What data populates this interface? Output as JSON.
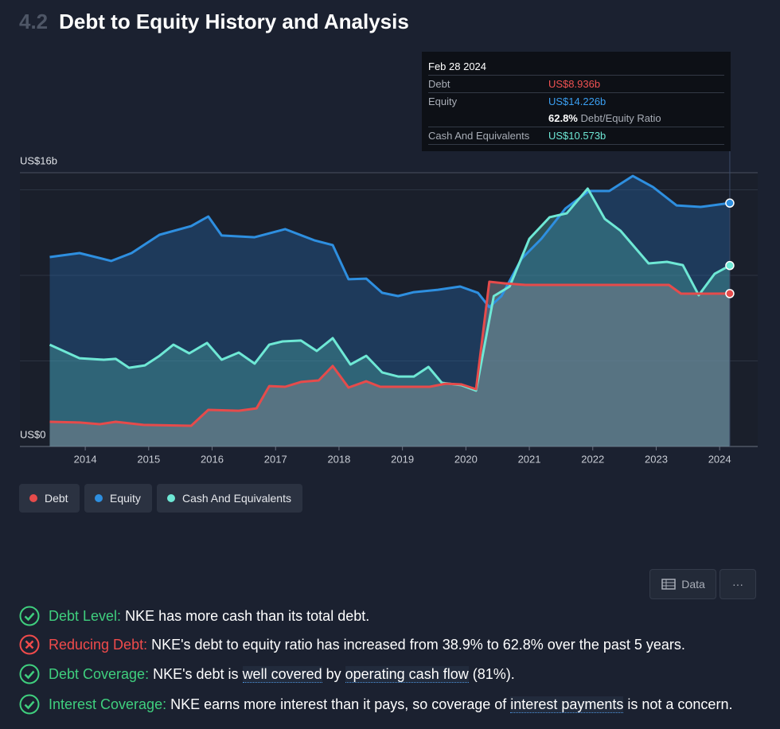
{
  "header": {
    "number": "4.2",
    "title": "Debt to Equity History and Analysis"
  },
  "chart_data": {
    "type": "area",
    "xlim": [
      2012.97,
      2024.6
    ],
    "xticks": [
      2014,
      2015,
      2016,
      2017,
      2018,
      2019,
      2020,
      2021,
      2022,
      2023,
      2024
    ],
    "ylim": [
      0,
      16
    ],
    "yticks": [
      {
        "value": 0,
        "label": "US$0"
      },
      {
        "value": 16,
        "label": "US$16b"
      }
    ],
    "grid_values": [
      5,
      10,
      15
    ],
    "series": [
      {
        "name": "Equity",
        "color": "#2e8fe0",
        "x": [
          2013.44,
          2013.91,
          2014.41,
          2014.73,
          2015.17,
          2015.67,
          2015.94,
          2016.15,
          2016.67,
          2017.15,
          2017.61,
          2017.9,
          2018.15,
          2018.43,
          2018.68,
          2018.93,
          2019.18,
          2019.56,
          2019.91,
          2020.19,
          2020.37,
          2020.56,
          2020.88,
          2021.19,
          2021.57,
          2021.94,
          2022.26,
          2022.63,
          2022.95,
          2023.32,
          2023.7,
          2024.16
        ],
        "values": [
          11.07,
          11.3,
          10.84,
          11.3,
          12.37,
          12.88,
          13.44,
          12.33,
          12.23,
          12.7,
          12.05,
          11.77,
          9.77,
          9.81,
          8.98,
          8.79,
          9.02,
          9.16,
          9.35,
          8.98,
          8.14,
          8.79,
          10.98,
          12.14,
          13.91,
          14.93,
          14.93,
          15.81,
          15.16,
          14.09,
          14.0,
          14.226
        ]
      },
      {
        "name": "Cash And Equivalents",
        "color": "#6ee8d5",
        "x": [
          2013.44,
          2013.91,
          2014.29,
          2014.48,
          2014.69,
          2014.94,
          2015.17,
          2015.39,
          2015.64,
          2015.92,
          2016.15,
          2016.42,
          2016.67,
          2016.9,
          2017.11,
          2017.4,
          2017.65,
          2017.9,
          2018.18,
          2018.43,
          2018.68,
          2018.93,
          2019.18,
          2019.41,
          2019.62,
          2019.93,
          2020.16,
          2020.44,
          2020.69,
          2021.0,
          2021.32,
          2021.59,
          2021.92,
          2022.19,
          2022.44,
          2022.88,
          2023.17,
          2023.42,
          2023.67,
          2023.92,
          2024.16
        ],
        "values": [
          5.95,
          5.16,
          5.07,
          5.12,
          4.6,
          4.74,
          5.3,
          5.95,
          5.44,
          6.05,
          5.07,
          5.49,
          4.84,
          5.95,
          6.14,
          6.19,
          5.58,
          6.33,
          4.79,
          5.3,
          4.33,
          4.09,
          4.09,
          4.65,
          3.72,
          3.58,
          3.26,
          8.79,
          9.35,
          12.14,
          13.4,
          13.63,
          15.07,
          13.3,
          12.6,
          10.7,
          10.79,
          10.6,
          8.84,
          10.09,
          10.573
        ]
      },
      {
        "name": "Debt",
        "color": "#e64b4b",
        "x": [
          2013.44,
          2013.91,
          2014.23,
          2014.48,
          2014.92,
          2015.67,
          2015.94,
          2016.42,
          2016.7,
          2016.9,
          2017.15,
          2017.4,
          2017.68,
          2017.9,
          2018.15,
          2018.43,
          2018.65,
          2019.43,
          2019.68,
          2019.93,
          2020.16,
          2020.37,
          2020.62,
          2020.94,
          2023.2,
          2023.39,
          2024.16
        ],
        "values": [
          1.44,
          1.4,
          1.3,
          1.44,
          1.26,
          1.21,
          2.14,
          2.09,
          2.23,
          3.53,
          3.49,
          3.77,
          3.86,
          4.7,
          3.44,
          3.81,
          3.49,
          3.49,
          3.67,
          3.63,
          3.35,
          9.63,
          9.53,
          9.44,
          9.44,
          8.93,
          8.936
        ]
      }
    ],
    "legend_order": [
      "Debt",
      "Equity",
      "Cash And Equivalents"
    ],
    "tooltip": {
      "date": "Feb 28 2024",
      "rows": [
        {
          "label": "Debt",
          "value": "US$8.936b"
        },
        {
          "label": "Equity",
          "value": "US$14.226b"
        }
      ],
      "ratio_value": "62.8%",
      "ratio_label": "Debt/Equity Ratio",
      "cash_label": "Cash And Equivalents",
      "cash_value": "US$10.573b"
    }
  },
  "controls": {
    "data_button": "Data",
    "more_button": "···"
  },
  "analysis": {
    "items": [
      {
        "label": "Debt Level:",
        "parts": [
          " NKE has more cash than its total debt."
        ]
      },
      {
        "label": "Reducing Debt:",
        "parts": [
          " NKE's debt to equity ratio has increased from 38.9% to 62.8% over the past 5 years."
        ]
      },
      {
        "label": "Debt Coverage:",
        "parts": [
          " NKE's debt is ",
          "well covered",
          " by ",
          "operating cash flow",
          " (81%)."
        ]
      },
      {
        "label": "Interest Coverage:",
        "parts": [
          " NKE earns more interest than it pays, so coverage of ",
          "interest payments",
          " is not a concern."
        ]
      }
    ]
  }
}
